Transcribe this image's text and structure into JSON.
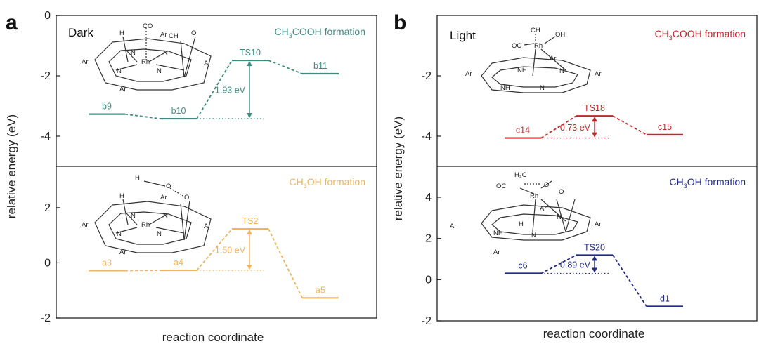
{
  "panels": {
    "a": {
      "letter": "a",
      "ylabel": "relative energy (eV)",
      "xlabel": "reaction coordinate",
      "top": {
        "condition": "Dark",
        "title": {
          "pre": "CH",
          "s1": "3",
          "mid": "COOH formation",
          "s2": "",
          "post": ""
        },
        "color": "#3f8b82"
      },
      "bottom": {
        "title": {
          "pre": "CH",
          "s1": "3",
          "mid": "OH formation",
          "s2": "",
          "post": ""
        },
        "color": "#f0b45a"
      }
    },
    "b": {
      "letter": "b",
      "ylabel": "relative energy (eV)",
      "xlabel": "reaction coordinate",
      "top": {
        "condition": "Light",
        "title": {
          "pre": "CH",
          "s1": "3",
          "mid": "COOH formation",
          "s2": "",
          "post": ""
        },
        "color": "#c0282c"
      },
      "bottom": {
        "title": {
          "pre": "CH",
          "s1": "3",
          "mid": "OH formation",
          "s2": "",
          "post": ""
        },
        "color": "#222a88"
      }
    }
  },
  "chart_data": [
    {
      "type": "line",
      "panel": "a",
      "subplot": "top",
      "ylim": [
        -5,
        0
      ],
      "yticks": [
        0,
        -2,
        -4
      ],
      "states": [
        {
          "label": "b9",
          "energy": -3.27
        },
        {
          "label": "b10",
          "energy": -3.42
        },
        {
          "label": "TS10",
          "energy": -1.49
        },
        {
          "label": "b11",
          "energy": -1.93
        }
      ],
      "barrier": {
        "label": "1.93 eV",
        "from": "b10",
        "to": "TS10"
      }
    },
    {
      "type": "line",
      "panel": "a",
      "subplot": "bottom",
      "ylim": [
        -2,
        3.5
      ],
      "yticks": [
        2,
        0,
        -2
      ],
      "states": [
        {
          "label": "a3",
          "energy": -0.28
        },
        {
          "label": "a4",
          "energy": -0.27
        },
        {
          "label": "TS2",
          "energy": 1.23
        },
        {
          "label": "a5",
          "energy": -1.27
        }
      ],
      "barrier": {
        "label": "1.50 eV",
        "from": "a4",
        "to": "TS2"
      }
    },
    {
      "type": "line",
      "panel": "b",
      "subplot": "top",
      "ylim": [
        -5,
        0
      ],
      "yticks": [
        -2,
        -4
      ],
      "states": [
        {
          "label": "c14",
          "energy": -4.06
        },
        {
          "label": "TS18",
          "energy": -3.33
        },
        {
          "label": "c15",
          "energy": -3.95
        }
      ],
      "barrier": {
        "label": "0.73 eV",
        "from": "c14",
        "to": "TS18"
      }
    },
    {
      "type": "line",
      "panel": "b",
      "subplot": "bottom",
      "ylim": [
        -2,
        5.5
      ],
      "yticks": [
        4,
        2,
        0,
        -2
      ],
      "states": [
        {
          "label": "c6",
          "energy": 0.3
        },
        {
          "label": "TS20",
          "energy": 1.19
        },
        {
          "label": "d1",
          "energy": -1.3
        }
      ],
      "barrier": {
        "label": "0.89 eV",
        "from": "c6",
        "to": "TS20"
      }
    }
  ]
}
